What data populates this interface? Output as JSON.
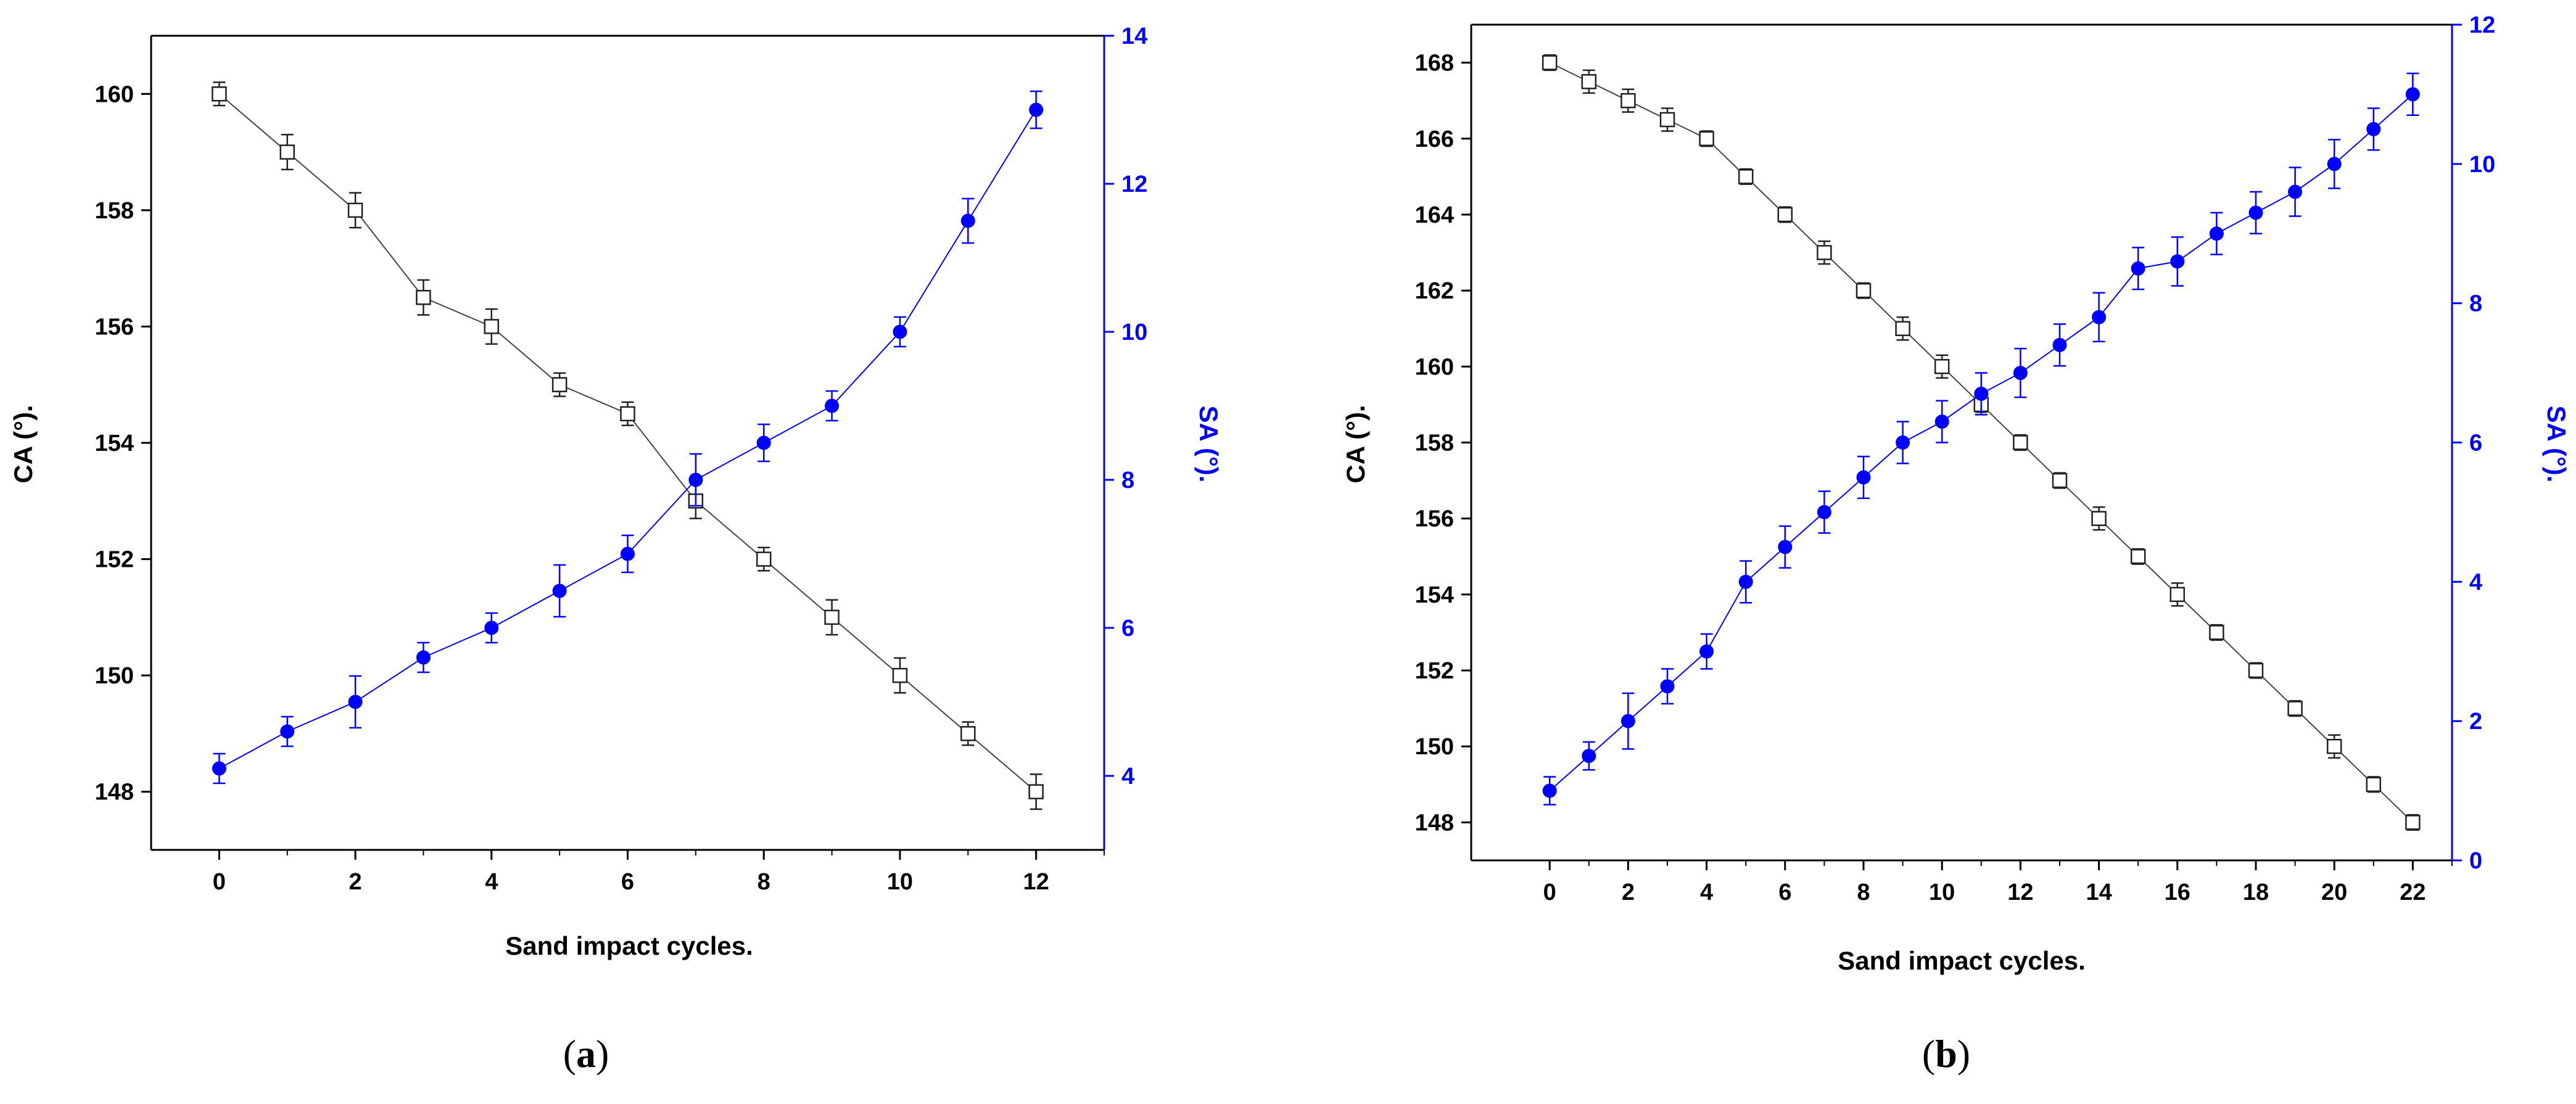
{
  "colors": {
    "ca_series": "#222222",
    "sa_series": "#0000ff",
    "axis": "#000000",
    "sa_axis": "#0000ff"
  },
  "panels": [
    {
      "label_pre": "(",
      "label_letter": "a",
      "label_post": ")",
      "xlabel": "Sand impact cycles.",
      "ylabel_left": "CA (°).",
      "ylabel_right": "SA (°).",
      "x_ticks": [
        "0",
        "2",
        "4",
        "6",
        "8",
        "10",
        "12"
      ],
      "y_left_ticks": [
        "148",
        "150",
        "152",
        "154",
        "156",
        "158",
        "160"
      ],
      "y_right_ticks": [
        "4",
        "6",
        "8",
        "10",
        "12",
        "14"
      ]
    },
    {
      "label_pre": "(",
      "label_letter": "b",
      "label_post": ")",
      "xlabel": "Sand impact cycles.",
      "ylabel_left": "CA (°).",
      "ylabel_right": "SA (°).",
      "x_ticks": [
        "0",
        "2",
        "4",
        "6",
        "8",
        "10",
        "12",
        "14",
        "16",
        "18",
        "20",
        "22"
      ],
      "y_left_ticks": [
        "148",
        "150",
        "152",
        "154",
        "156",
        "158",
        "160",
        "162",
        "164",
        "166",
        "168"
      ],
      "y_right_ticks": [
        "0",
        "2",
        "4",
        "6",
        "8",
        "10",
        "12"
      ]
    }
  ],
  "chart_data": [
    {
      "type": "line",
      "xlabel": "Sand impact cycles.",
      "ylabel": "CA (°).",
      "y2label": "SA (°).",
      "xlim": [
        -1,
        13
      ],
      "ylim": [
        147,
        161
      ],
      "y2lim": [
        3,
        14
      ],
      "x_ticks": [
        0,
        2,
        4,
        6,
        8,
        10,
        12
      ],
      "y_ticks": [
        148,
        150,
        152,
        154,
        156,
        158,
        160
      ],
      "y2_ticks": [
        4,
        6,
        8,
        10,
        12,
        14
      ],
      "grid": false,
      "x": [
        0,
        1,
        2,
        3,
        4,
        5,
        6,
        7,
        8,
        9,
        10,
        11,
        12
      ],
      "series": [
        {
          "axis": "left",
          "marker": "open-square",
          "values": [
            160,
            159,
            158,
            156.5,
            156,
            155,
            154.5,
            153,
            152,
            151,
            150,
            149,
            148
          ],
          "error": [
            0.2,
            0.3,
            0.3,
            0.3,
            0.3,
            0.2,
            0.2,
            0.3,
            0.2,
            0.3,
            0.3,
            0.2,
            0.3
          ]
        },
        {
          "axis": "right",
          "marker": "filled-circle",
          "values": [
            4.1,
            4.6,
            5.0,
            5.6,
            6.0,
            6.5,
            7.0,
            8.0,
            8.5,
            9.0,
            10.0,
            11.5,
            13.0
          ],
          "error": [
            0.2,
            0.2,
            0.35,
            0.2,
            0.2,
            0.35,
            0.25,
            0.35,
            0.25,
            0.2,
            0.2,
            0.3,
            0.25
          ]
        }
      ]
    },
    {
      "type": "line",
      "xlabel": "Sand impact cycles.",
      "ylabel": "CA (°).",
      "y2label": "SA (°).",
      "xlim": [
        -2,
        23
      ],
      "ylim": [
        147,
        169
      ],
      "y2lim": [
        0,
        12
      ],
      "x_ticks": [
        0,
        2,
        4,
        6,
        8,
        10,
        12,
        14,
        16,
        18,
        20,
        22
      ],
      "y_ticks": [
        148,
        150,
        152,
        154,
        156,
        158,
        160,
        162,
        164,
        166,
        168
      ],
      "y2_ticks": [
        0,
        2,
        4,
        6,
        8,
        10,
        12
      ],
      "grid": false,
      "x": [
        0,
        1,
        2,
        3,
        4,
        5,
        6,
        7,
        8,
        9,
        10,
        11,
        12,
        13,
        14,
        15,
        16,
        17,
        18,
        19,
        20,
        21,
        22
      ],
      "series": [
        {
          "axis": "left",
          "marker": "open-square",
          "values": [
            168,
            167.5,
            167,
            166.5,
            166,
            165,
            164,
            163,
            162,
            161,
            160,
            159,
            158,
            157,
            156,
            155,
            154,
            153,
            152,
            151,
            150,
            149,
            148
          ],
          "error": [
            0.2,
            0.3,
            0.3,
            0.3,
            0.2,
            0.2,
            0.2,
            0.3,
            0.2,
            0.3,
            0.3,
            0.2,
            0.2,
            0.2,
            0.3,
            0.2,
            0.3,
            0.2,
            0.2,
            0.2,
            0.3,
            0.2,
            0.2
          ]
        },
        {
          "axis": "right",
          "marker": "filled-circle",
          "values": [
            1.0,
            1.5,
            2.0,
            2.5,
            3.0,
            4.0,
            4.5,
            5.0,
            5.5,
            6.0,
            6.3,
            6.7,
            7.0,
            7.4,
            7.8,
            8.5,
            8.6,
            9.0,
            9.3,
            9.6,
            10.0,
            10.5,
            11.0
          ],
          "error": [
            0.2,
            0.2,
            0.4,
            0.25,
            0.25,
            0.3,
            0.3,
            0.3,
            0.3,
            0.3,
            0.3,
            0.3,
            0.35,
            0.3,
            0.35,
            0.3,
            0.35,
            0.3,
            0.3,
            0.35,
            0.35,
            0.3,
            0.3
          ]
        }
      ]
    }
  ]
}
